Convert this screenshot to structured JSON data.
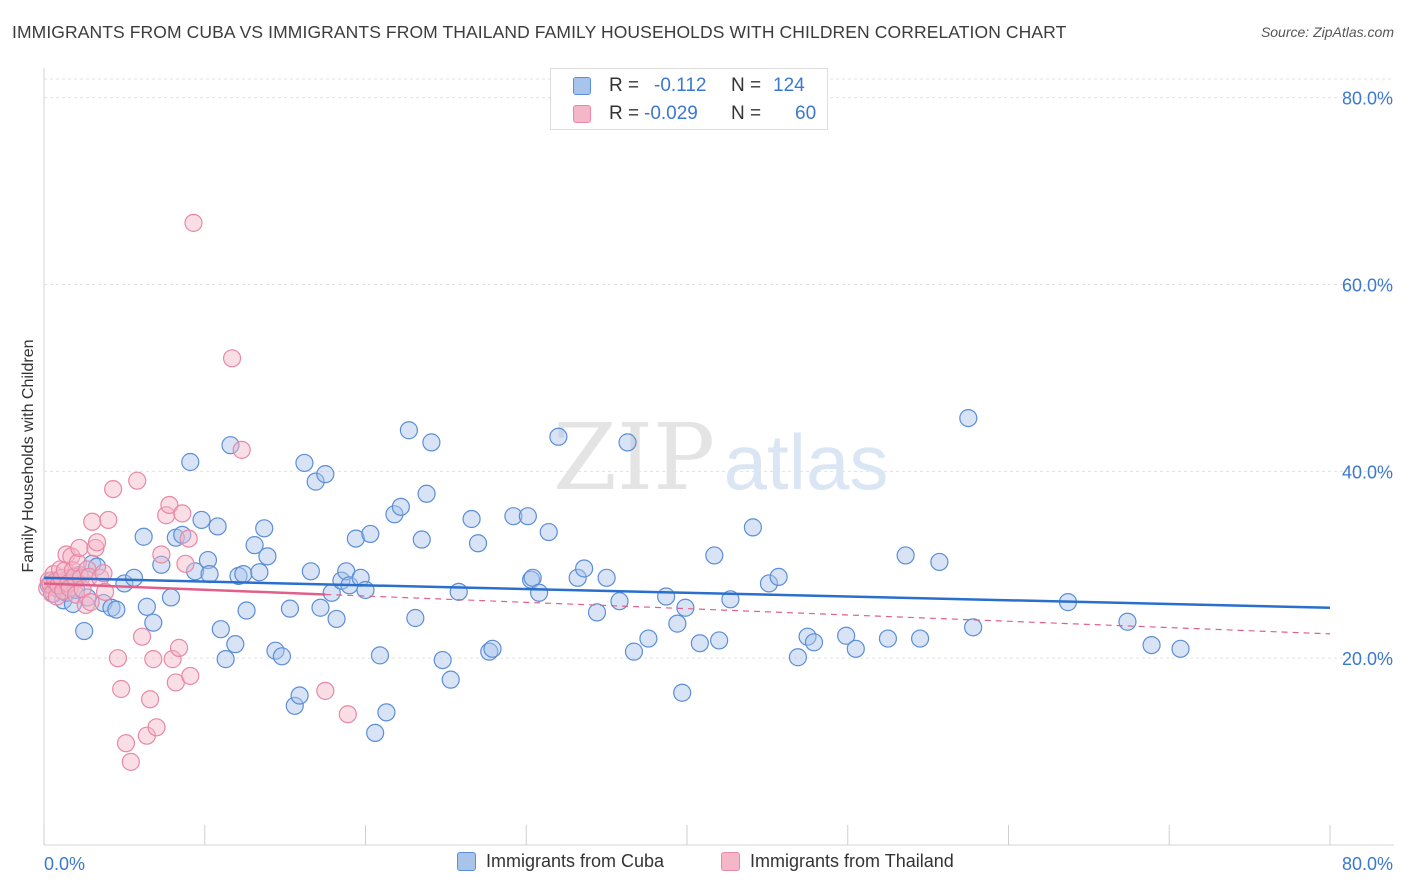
{
  "header": {
    "title": "IMMIGRANTS FROM CUBA VS IMMIGRANTS FROM THAILAND FAMILY HOUSEHOLDS WITH CHILDREN CORRELATION CHART",
    "source": "Source: ZipAtlas.com"
  },
  "watermark": {
    "zip": "ZIP",
    "atlas": "atlas"
  },
  "colors": {
    "cuba_fill": "#a9c4eb",
    "cuba_stroke": "#5b8ed8",
    "cuba_line": "#2a6fcc",
    "thailand_fill": "#f5b6c8",
    "thailand_stroke": "#e888a6",
    "thailand_line": "#e0608c",
    "axis_label": "#3b78cf",
    "grid": "#e3e3e3"
  },
  "legend": {
    "cuba": {
      "r_label": "R =",
      "r_value": "-0.112",
      "n_label": "N =",
      "n_value": "124"
    },
    "thailand": {
      "r_label": "R =",
      "r_value": "-0.029",
      "n_label": "N =",
      "n_value": "60"
    }
  },
  "chart_data": {
    "type": "scatter",
    "title": "IMMIGRANTS FROM CUBA VS IMMIGRANTS FROM THAILAND FAMILY HOUSEHOLDS WITH CHILDREN CORRELATION CHART",
    "xlabel": "",
    "ylabel": "Family Households with Children",
    "xlim": [
      0,
      80
    ],
    "ylim": [
      0,
      82
    ],
    "x_tick_labels": [
      "0.0%",
      "80.0%"
    ],
    "y_ticks": [
      20,
      40,
      60,
      80
    ],
    "y_tick_labels": [
      "20.0%",
      "40.0%",
      "60.0%",
      "80.0%"
    ],
    "grid": true,
    "legend_position": "top-center",
    "series": [
      {
        "name": "Immigrants from Cuba",
        "R": -0.112,
        "N": 124,
        "trend": {
          "x": [
            0,
            80
          ],
          "y": [
            28.6,
            25.4
          ],
          "style": "solid"
        },
        "points": [
          [
            0.3,
            27.8
          ],
          [
            0.5,
            28.3
          ],
          [
            0.6,
            26.9
          ],
          [
            0.8,
            27.5
          ],
          [
            1.0,
            28.1
          ],
          [
            1.2,
            26.2
          ],
          [
            1.4,
            27.0
          ],
          [
            1.6,
            28.6
          ],
          [
            1.8,
            25.8
          ],
          [
            2.0,
            27.3
          ],
          [
            2.2,
            28.9
          ],
          [
            2.5,
            22.9
          ],
          [
            2.7,
            26.5
          ],
          [
            3.0,
            30.1
          ],
          [
            3.3,
            29.8
          ],
          [
            3.7,
            25.9
          ],
          [
            4.2,
            25.4
          ],
          [
            4.5,
            25.2
          ],
          [
            5.0,
            28.0
          ],
          [
            5.6,
            28.6
          ],
          [
            6.2,
            33.0
          ],
          [
            6.4,
            25.5
          ],
          [
            6.8,
            23.8
          ],
          [
            7.3,
            30.0
          ],
          [
            7.9,
            26.5
          ],
          [
            8.2,
            32.9
          ],
          [
            8.6,
            33.2
          ],
          [
            9.1,
            41.0
          ],
          [
            9.4,
            29.3
          ],
          [
            9.8,
            34.8
          ],
          [
            10.2,
            30.5
          ],
          [
            10.3,
            29.0
          ],
          [
            10.8,
            34.1
          ],
          [
            11.0,
            23.1
          ],
          [
            11.3,
            19.9
          ],
          [
            11.6,
            42.8
          ],
          [
            11.9,
            21.5
          ],
          [
            12.1,
            28.8
          ],
          [
            12.4,
            29.0
          ],
          [
            12.6,
            25.1
          ],
          [
            13.1,
            32.1
          ],
          [
            13.4,
            29.2
          ],
          [
            13.7,
            33.9
          ],
          [
            13.9,
            30.9
          ],
          [
            14.4,
            20.8
          ],
          [
            14.8,
            20.2
          ],
          [
            15.3,
            25.3
          ],
          [
            15.6,
            14.9
          ],
          [
            15.9,
            16.0
          ],
          [
            16.2,
            40.9
          ],
          [
            16.6,
            29.3
          ],
          [
            16.9,
            38.9
          ],
          [
            17.2,
            25.4
          ],
          [
            17.5,
            39.7
          ],
          [
            17.9,
            27.0
          ],
          [
            18.2,
            24.2
          ],
          [
            18.5,
            28.3
          ],
          [
            18.8,
            29.3
          ],
          [
            19.0,
            27.8
          ],
          [
            19.4,
            32.8
          ],
          [
            19.7,
            28.6
          ],
          [
            20.0,
            27.3
          ],
          [
            20.3,
            33.3
          ],
          [
            20.6,
            12.0
          ],
          [
            20.9,
            20.3
          ],
          [
            21.3,
            14.2
          ],
          [
            21.8,
            35.4
          ],
          [
            22.2,
            36.2
          ],
          [
            22.7,
            44.4
          ],
          [
            23.1,
            24.3
          ],
          [
            23.5,
            32.7
          ],
          [
            23.8,
            37.6
          ],
          [
            24.1,
            43.1
          ],
          [
            24.8,
            19.8
          ],
          [
            25.3,
            17.7
          ],
          [
            25.8,
            27.1
          ],
          [
            26.6,
            34.9
          ],
          [
            27.0,
            32.3
          ],
          [
            27.7,
            20.7
          ],
          [
            27.9,
            21.0
          ],
          [
            29.2,
            35.2
          ],
          [
            30.1,
            35.2
          ],
          [
            30.3,
            28.4
          ],
          [
            30.4,
            28.6
          ],
          [
            30.8,
            27.0
          ],
          [
            31.4,
            33.5
          ],
          [
            32.0,
            43.7
          ],
          [
            33.2,
            28.6
          ],
          [
            33.6,
            29.6
          ],
          [
            34.4,
            24.9
          ],
          [
            35.0,
            28.6
          ],
          [
            35.8,
            26.1
          ],
          [
            36.3,
            43.1
          ],
          [
            36.7,
            20.7
          ],
          [
            37.6,
            22.1
          ],
          [
            38.7,
            26.6
          ],
          [
            39.4,
            23.7
          ],
          [
            39.7,
            16.3
          ],
          [
            39.9,
            25.4
          ],
          [
            40.8,
            21.6
          ],
          [
            41.7,
            31.0
          ],
          [
            42.0,
            21.9
          ],
          [
            42.7,
            26.3
          ],
          [
            44.1,
            34.0
          ],
          [
            45.1,
            28.0
          ],
          [
            45.7,
            28.7
          ],
          [
            46.9,
            20.1
          ],
          [
            47.5,
            22.3
          ],
          [
            47.9,
            21.7
          ],
          [
            49.9,
            22.4
          ],
          [
            50.5,
            21.0
          ],
          [
            52.5,
            22.1
          ],
          [
            53.6,
            31.0
          ],
          [
            54.5,
            22.1
          ],
          [
            55.7,
            30.3
          ],
          [
            57.8,
            23.3
          ],
          [
            57.5,
            45.7
          ],
          [
            63.7,
            26.0
          ],
          [
            67.4,
            23.9
          ],
          [
            68.9,
            21.4
          ],
          [
            70.7,
            21.0
          ]
        ]
      },
      {
        "name": "Immigrants from Thailand",
        "R": -0.029,
        "N": 60,
        "trend": {
          "x": [
            0,
            80
          ],
          "y": [
            28.0,
            22.6
          ],
          "style": "solid-to-dashed",
          "solid_until_x": 17.5
        },
        "points": [
          [
            0.2,
            27.5
          ],
          [
            0.3,
            28.3
          ],
          [
            0.4,
            27.9
          ],
          [
            0.5,
            26.9
          ],
          [
            0.6,
            29.0
          ],
          [
            0.7,
            28.2
          ],
          [
            0.8,
            26.6
          ],
          [
            0.9,
            27.8
          ],
          [
            1.0,
            29.5
          ],
          [
            1.1,
            28.6
          ],
          [
            1.2,
            27.2
          ],
          [
            1.3,
            29.4
          ],
          [
            1.4,
            31.1
          ],
          [
            1.5,
            28.0
          ],
          [
            1.6,
            27.5
          ],
          [
            1.7,
            30.9
          ],
          [
            1.8,
            29.4
          ],
          [
            1.9,
            28.7
          ],
          [
            2.0,
            26.8
          ],
          [
            2.1,
            30.2
          ],
          [
            2.2,
            31.8
          ],
          [
            2.3,
            28.6
          ],
          [
            2.4,
            27.4
          ],
          [
            2.6,
            25.7
          ],
          [
            2.7,
            29.5
          ],
          [
            2.8,
            28.7
          ],
          [
            2.9,
            26.0
          ],
          [
            3.0,
            34.6
          ],
          [
            3.2,
            31.8
          ],
          [
            3.3,
            32.4
          ],
          [
            3.5,
            28.6
          ],
          [
            3.7,
            29.1
          ],
          [
            3.8,
            27.1
          ],
          [
            4.0,
            34.8
          ],
          [
            4.3,
            38.1
          ],
          [
            4.6,
            20.0
          ],
          [
            4.8,
            16.7
          ],
          [
            5.1,
            10.9
          ],
          [
            5.4,
            8.9
          ],
          [
            5.8,
            39.0
          ],
          [
            6.1,
            22.3
          ],
          [
            6.4,
            11.7
          ],
          [
            6.6,
            15.6
          ],
          [
            6.8,
            19.9
          ],
          [
            7.0,
            12.6
          ],
          [
            7.3,
            31.1
          ],
          [
            7.6,
            35.3
          ],
          [
            7.8,
            36.4
          ],
          [
            8.0,
            19.9
          ],
          [
            8.2,
            17.4
          ],
          [
            8.4,
            21.1
          ],
          [
            8.6,
            35.5
          ],
          [
            8.8,
            30.1
          ],
          [
            9.0,
            32.8
          ],
          [
            9.1,
            18.1
          ],
          [
            9.3,
            66.6
          ],
          [
            11.7,
            52.1
          ],
          [
            12.3,
            42.3
          ],
          [
            17.5,
            16.5
          ],
          [
            18.9,
            14.0
          ]
        ]
      }
    ]
  }
}
